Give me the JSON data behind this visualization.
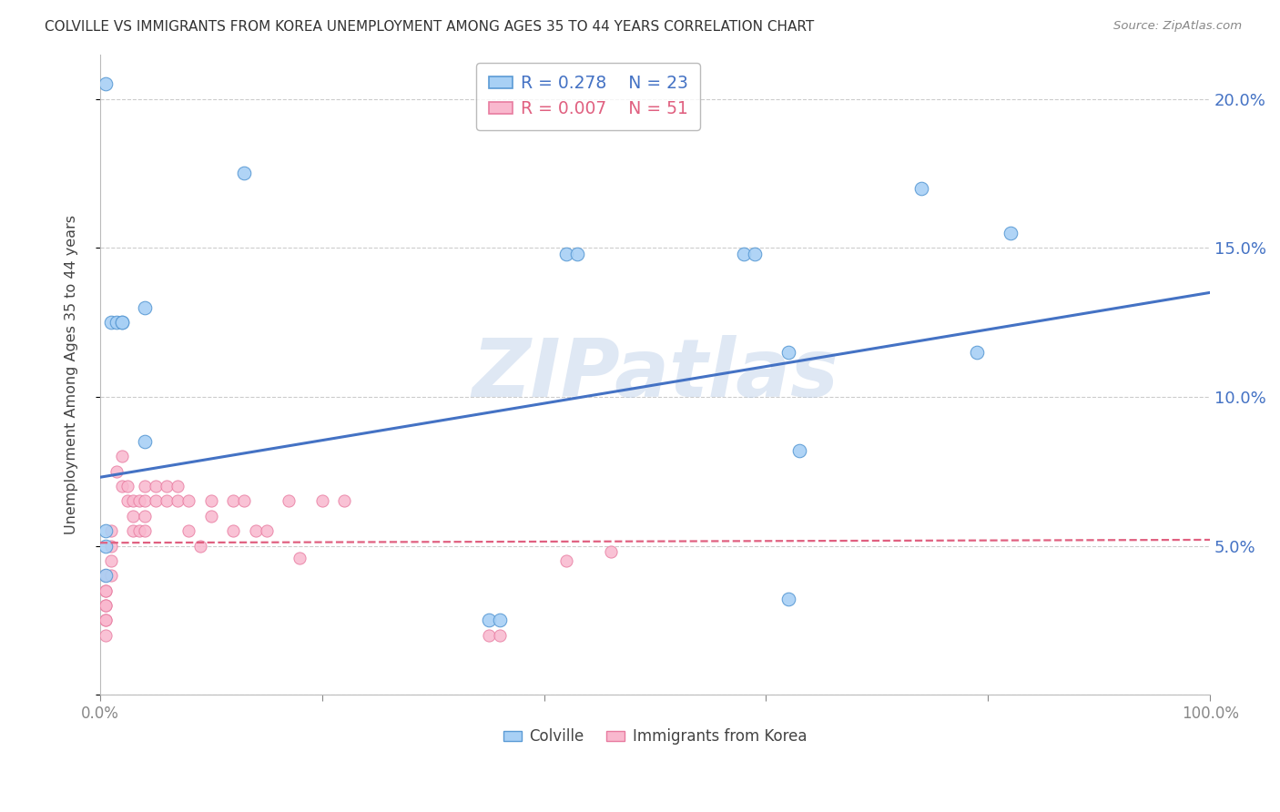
{
  "title": "COLVILLE VS IMMIGRANTS FROM KOREA UNEMPLOYMENT AMONG AGES 35 TO 44 YEARS CORRELATION CHART",
  "source": "Source: ZipAtlas.com",
  "ylabel": "Unemployment Among Ages 35 to 44 years",
  "ytick_values": [
    0.0,
    0.05,
    0.1,
    0.15,
    0.2
  ],
  "ytick_labels": [
    "",
    "5.0%",
    "10.0%",
    "15.0%",
    "20.0%"
  ],
  "xlim": [
    0.0,
    1.0
  ],
  "ylim": [
    0.0,
    0.215
  ],
  "watermark": "ZIPatlas",
  "colville_x": [
    0.005,
    0.01,
    0.015,
    0.02,
    0.02,
    0.04,
    0.04,
    0.005,
    0.005,
    0.005,
    0.42,
    0.43,
    0.13,
    0.58,
    0.59,
    0.74,
    0.82,
    0.79,
    0.62,
    0.35,
    0.36,
    0.63,
    0.62
  ],
  "colville_y": [
    0.205,
    0.125,
    0.125,
    0.125,
    0.125,
    0.13,
    0.085,
    0.055,
    0.05,
    0.04,
    0.148,
    0.148,
    0.175,
    0.148,
    0.148,
    0.17,
    0.155,
    0.115,
    0.115,
    0.025,
    0.025,
    0.082,
    0.032
  ],
  "korea_x": [
    0.005,
    0.005,
    0.005,
    0.005,
    0.005,
    0.005,
    0.005,
    0.005,
    0.005,
    0.01,
    0.01,
    0.01,
    0.01,
    0.015,
    0.02,
    0.02,
    0.025,
    0.025,
    0.03,
    0.03,
    0.03,
    0.035,
    0.035,
    0.04,
    0.04,
    0.04,
    0.04,
    0.05,
    0.05,
    0.06,
    0.06,
    0.07,
    0.07,
    0.08,
    0.08,
    0.09,
    0.1,
    0.1,
    0.12,
    0.12,
    0.13,
    0.14,
    0.15,
    0.17,
    0.18,
    0.2,
    0.22,
    0.35,
    0.36,
    0.42,
    0.46
  ],
  "korea_y": [
    0.04,
    0.04,
    0.035,
    0.035,
    0.03,
    0.03,
    0.025,
    0.025,
    0.02,
    0.055,
    0.05,
    0.045,
    0.04,
    0.075,
    0.08,
    0.07,
    0.07,
    0.065,
    0.065,
    0.06,
    0.055,
    0.065,
    0.055,
    0.07,
    0.065,
    0.06,
    0.055,
    0.07,
    0.065,
    0.07,
    0.065,
    0.07,
    0.065,
    0.065,
    0.055,
    0.05,
    0.065,
    0.06,
    0.065,
    0.055,
    0.065,
    0.055,
    0.055,
    0.065,
    0.046,
    0.065,
    0.065,
    0.02,
    0.02,
    0.045,
    0.048
  ],
  "colville_R": 0.278,
  "colville_N": 23,
  "korea_R": 0.007,
  "korea_N": 51,
  "colville_color": "#A8D0F5",
  "korea_color": "#F9B8CE",
  "colville_edge": "#5B9BD5",
  "korea_edge": "#E87BA0",
  "colville_line": "#4472C4",
  "korea_line": "#E06080",
  "colville_trend_x": [
    0.0,
    1.0
  ],
  "colville_trend_y": [
    0.073,
    0.135
  ],
  "korea_trend_x": [
    0.0,
    1.0
  ],
  "korea_trend_y": [
    0.051,
    0.052
  ],
  "background_color": "#FFFFFF",
  "grid_color": "#CCCCCC",
  "tick_color": "#4472C4",
  "xtick_color": "#888888"
}
